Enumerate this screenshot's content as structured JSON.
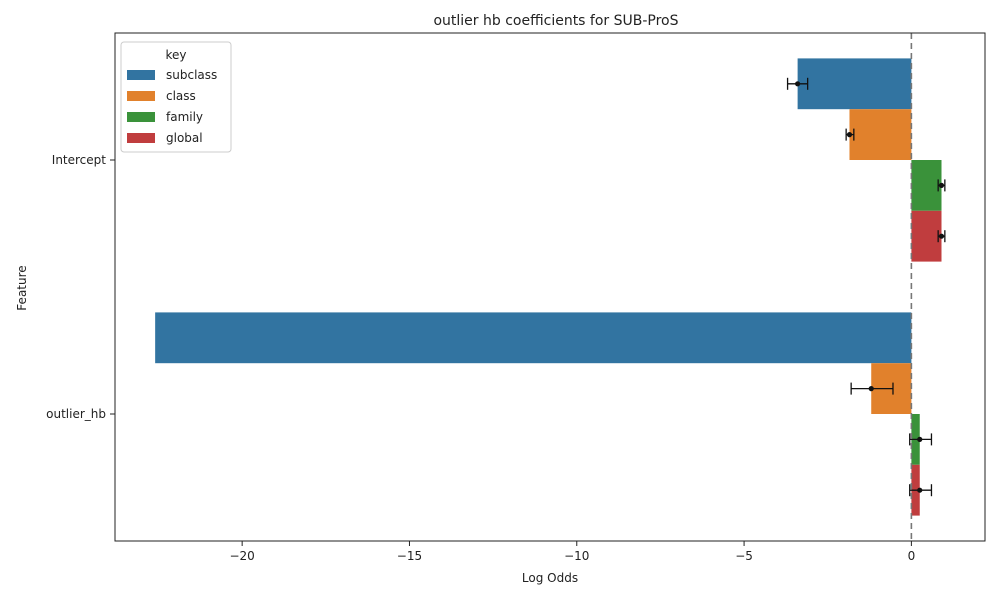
{
  "chart_data": {
    "type": "bar",
    "orientation": "horizontal",
    "title": "outlier hb coefficients for SUB-ProS",
    "xlabel": "Log Odds",
    "ylabel": "Feature",
    "xlim": [
      -23.8,
      2.2
    ],
    "xticks": [
      -20,
      -15,
      -10,
      -5,
      0
    ],
    "xtick_labels": [
      "−20",
      "−15",
      "−10",
      "−5",
      "0"
    ],
    "categories": [
      "Intercept",
      "outlier_hb"
    ],
    "reference_line": 0,
    "grid": false,
    "legend": {
      "title": "key",
      "position": "top-left"
    },
    "series": [
      {
        "name": "subclass",
        "color": "#3274a1",
        "values": [
          -3.4,
          -22.6
        ],
        "error_low": [
          -3.7,
          null
        ],
        "error_high": [
          -3.1,
          null
        ],
        "point": [
          -3.4,
          null
        ]
      },
      {
        "name": "class",
        "color": "#e1812c",
        "values": [
          -1.85,
          -1.2
        ],
        "error_low": [
          -1.95,
          -1.8
        ],
        "error_high": [
          -1.72,
          -0.55
        ],
        "point": [
          -1.85,
          -1.2
        ]
      },
      {
        "name": "family",
        "color": "#3a923a",
        "values": [
          0.9,
          0.25
        ],
        "error_low": [
          0.8,
          -0.05
        ],
        "error_high": [
          1.0,
          0.6
        ],
        "point": [
          0.9,
          0.25
        ]
      },
      {
        "name": "global",
        "color": "#c03d3e",
        "values": [
          0.9,
          0.25
        ],
        "error_low": [
          0.8,
          -0.05
        ],
        "error_high": [
          1.0,
          0.6
        ],
        "point": [
          0.9,
          0.25
        ]
      }
    ]
  }
}
